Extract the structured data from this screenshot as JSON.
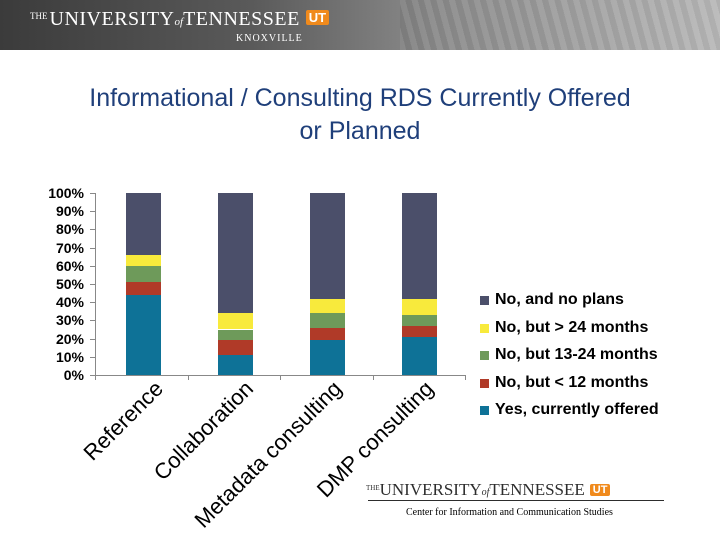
{
  "header": {
    "the": "THE",
    "university": "UNIVERSITY",
    "of": "of",
    "tennessee": "TENNESSEE",
    "ut_mark": "UT",
    "campus": "KNOXVILLE"
  },
  "footer": {
    "the": "THE",
    "university": "UNIVERSITY",
    "of": "of",
    "tennessee": "TENNESSEE",
    "ut_mark": "UT",
    "subtitle": "Center for Information and Communication Studies"
  },
  "colors": {
    "header_dark": "#3b3b3b",
    "title": "#1f3f7a",
    "ut_orange": "#f08a1c"
  },
  "chart_data": {
    "type": "bar",
    "stacked": true,
    "percent_stacked": true,
    "title": "Informational / Consulting RDS Currently Offered or Planned",
    "title_lines": [
      "Informational / Consulting RDS Currently Offered",
      "or Planned"
    ],
    "categories": [
      "Reference",
      "Collaboration",
      "Metadata consulting",
      "DMP consulting"
    ],
    "category_label_lines": [
      [
        "Reference"
      ],
      [
        "Collaboration"
      ],
      [
        "Metadata consulting"
      ],
      [
        "DMP consulting"
      ]
    ],
    "series": [
      {
        "name": "Yes, currently offered",
        "color": "#0e7297",
        "values": [
          44,
          11,
          19,
          21
        ]
      },
      {
        "name": "No, but < 12 months",
        "color": "#b03a28",
        "values": [
          7,
          8,
          7,
          6
        ]
      },
      {
        "name": "No, but 13-24 months",
        "color": "#6e9a5a",
        "values": [
          9,
          6,
          8,
          6
        ]
      },
      {
        "name": "No, but > 24 months",
        "color": "#f8ea3c",
        "values": [
          6,
          9,
          8,
          9
        ]
      },
      {
        "name": "No, and no plans",
        "color": "#4b4f6a",
        "values": [
          34,
          66,
          58,
          58
        ]
      }
    ],
    "legend_order": [
      "No, and no plans",
      "No, but > 24 months",
      "No, but 13-24 months",
      "No, but < 12 months",
      "Yes, currently offered"
    ],
    "yaxis": {
      "ticks": [
        "100%",
        "90%",
        "80%",
        "70%",
        "60%",
        "50%",
        "40%",
        "30%",
        "20%",
        "10%",
        "0%"
      ],
      "ylim": [
        0,
        100
      ]
    },
    "legend_position": "right",
    "grid": false,
    "xlabel": "",
    "ylabel": ""
  }
}
